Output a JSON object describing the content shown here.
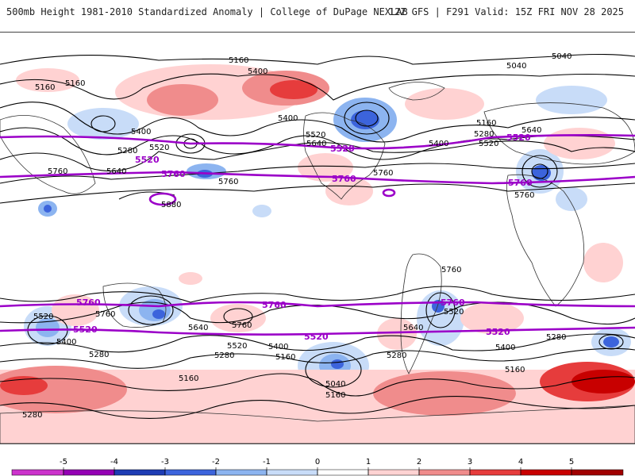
{
  "header": {
    "left": "500mb Height 1981-2010 Standardized Anomaly | College of DuPage NEXLAB",
    "right": "12Z GFS | F291 Valid: 15Z FRI NOV 28 2025"
  },
  "colors": {
    "ref_line": "#9b00c8",
    "contour": "#000000",
    "land": "#333333"
  },
  "contour_labels": {
    "c5160": "5160",
    "c5040": "5040",
    "c5400": "5400",
    "c5280": "5280",
    "c5520": "5520",
    "c5640": "5640",
    "c5760": "5760",
    "c5880": "5880"
  },
  "colorbar": {
    "ticks": [
      "-5",
      "-4",
      "-3",
      "-2",
      "-1",
      "0",
      "1",
      "2",
      "3",
      "4",
      "5"
    ],
    "colors": [
      "#cc33cc",
      "#9400b4",
      "#1e3cb4",
      "#3c64dc",
      "#8cb4f0",
      "#c8dcf8",
      "#ffffff",
      "#ffd2d2",
      "#f08c8c",
      "#e63c3c",
      "#c80000",
      "#a00000",
      "#ffa500"
    ]
  }
}
